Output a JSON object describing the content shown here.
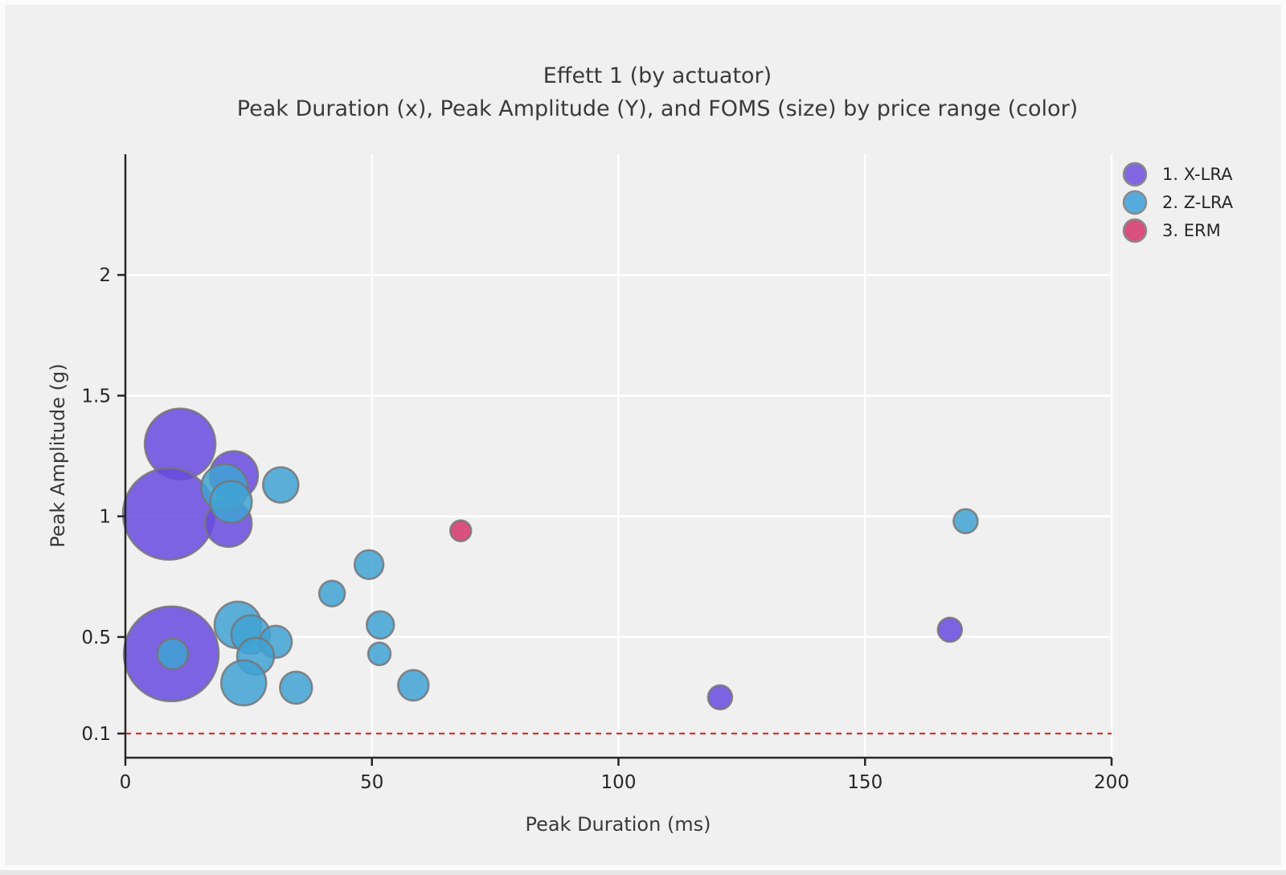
{
  "title": "Effett 1 (by actuator)",
  "subtitle": "Peak Duration (x), Peak Amplitude (Y), and FOMS (size) by price range (color)",
  "legend": {
    "position": "top-right",
    "items": [
      {
        "label": "1. X-LRA",
        "color": "#8166E1"
      },
      {
        "label": "2. Z-LRA",
        "color": "#56ABDE"
      },
      {
        "label": "3. ERM",
        "color": "#D94F7D"
      }
    ]
  },
  "colors": {
    "background": "#f0f0f0",
    "grid": "#ffffff",
    "axis": "#262626",
    "threshold_line": "#ee2222",
    "bubble_stroke": "#757575"
  },
  "chart_data": {
    "type": "scatter",
    "subtype": "bubble",
    "title": "Effett 1 (by actuator)",
    "subtitle": "Peak Duration (x), Peak Amplitude (Y), and FOMS (size) by price range (color)",
    "xlabel": "Peak Duration (ms)",
    "ylabel": "Peak Amplitude (g)",
    "xlim": [
      0,
      200
    ],
    "ylim": [
      0,
      2.5
    ],
    "xticks": [
      0,
      50,
      100,
      150,
      200
    ],
    "yticks": [
      0.1,
      0.5,
      1,
      1.5,
      2
    ],
    "grid": true,
    "threshold_y": 0.1,
    "size_legend": "bubble radius encodes FOMS",
    "series": [
      {
        "name": "1. X-LRA",
        "fill": "#674ADE",
        "points": [
          {
            "x": 11.1,
            "y": 1.3,
            "r": 44
          },
          {
            "x": 8.8,
            "y": 1.01,
            "r": 57
          },
          {
            "x": 22.0,
            "y": 1.17,
            "r": 30
          },
          {
            "x": 20.9,
            "y": 0.97,
            "r": 29
          },
          {
            "x": 9.3,
            "y": 0.43,
            "r": 59
          },
          {
            "x": 120.6,
            "y": 0.25,
            "r": 15
          },
          {
            "x": 167.2,
            "y": 0.53,
            "r": 15
          }
        ]
      },
      {
        "name": "2. Z-LRA",
        "fill": "#41A2D4",
        "points": [
          {
            "x": 20.1,
            "y": 1.12,
            "r": 29
          },
          {
            "x": 21.4,
            "y": 1.06,
            "r": 26
          },
          {
            "x": 31.5,
            "y": 1.13,
            "r": 22
          },
          {
            "x": 9.6,
            "y": 0.43,
            "r": 19
          },
          {
            "x": 22.8,
            "y": 0.55,
            "r": 29
          },
          {
            "x": 25.4,
            "y": 0.51,
            "r": 24
          },
          {
            "x": 30.5,
            "y": 0.48,
            "r": 20
          },
          {
            "x": 26.4,
            "y": 0.42,
            "r": 23
          },
          {
            "x": 24.0,
            "y": 0.31,
            "r": 28
          },
          {
            "x": 34.6,
            "y": 0.29,
            "r": 20
          },
          {
            "x": 41.9,
            "y": 0.68,
            "r": 16
          },
          {
            "x": 49.4,
            "y": 0.8,
            "r": 18
          },
          {
            "x": 51.7,
            "y": 0.55,
            "r": 17
          },
          {
            "x": 51.5,
            "y": 0.43,
            "r": 14
          },
          {
            "x": 58.4,
            "y": 0.3,
            "r": 19
          },
          {
            "x": 170.4,
            "y": 0.98,
            "r": 15
          }
        ]
      },
      {
        "name": "3. ERM",
        "fill": "#D5356A",
        "points": [
          {
            "x": 68.0,
            "y": 0.94,
            "r": 13
          }
        ]
      }
    ]
  }
}
